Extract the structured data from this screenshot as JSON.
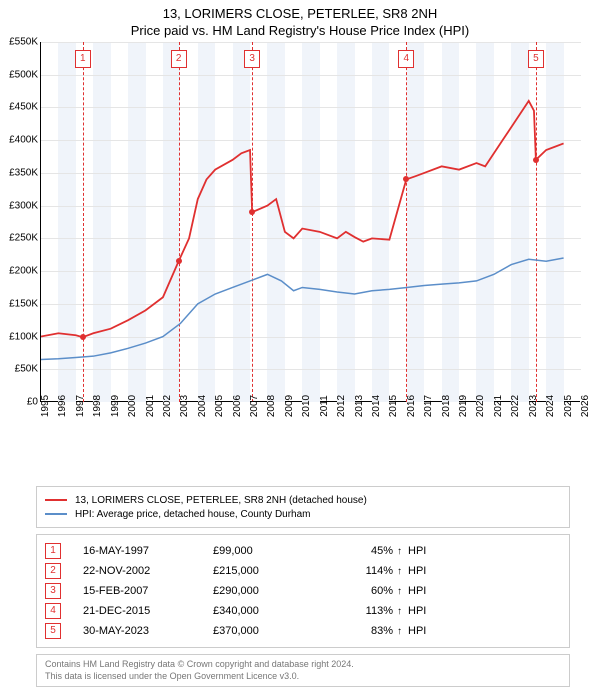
{
  "title_line1": "13, LORIMERS CLOSE, PETERLEE, SR8 2NH",
  "title_line2": "Price paid vs. HM Land Registry's House Price Index (HPI)",
  "chart": {
    "type": "line",
    "background_color": "#ffffff",
    "shade_color": "#f0f4fa",
    "grid_color": "#e5e5e5",
    "ylim": [
      0,
      550000
    ],
    "ytick_step": 50000,
    "yticks": [
      "£0",
      "£50K",
      "£100K",
      "£150K",
      "£200K",
      "£250K",
      "£300K",
      "£350K",
      "£400K",
      "£450K",
      "£500K",
      "£550K"
    ],
    "xlim": [
      1995,
      2026
    ],
    "xticks": [
      1995,
      1996,
      1997,
      1998,
      1999,
      2000,
      2001,
      2002,
      2003,
      2004,
      2005,
      2006,
      2007,
      2008,
      2009,
      2010,
      2011,
      2012,
      2013,
      2014,
      2015,
      2016,
      2017,
      2018,
      2019,
      2020,
      2021,
      2022,
      2023,
      2024,
      2025,
      2026
    ],
    "series": {
      "property": {
        "color": "#e03030",
        "width": 1.8,
        "label": "13, LORIMERS CLOSE, PETERLEE, SR8 2NH (detached house)",
        "points": [
          [
            1995.0,
            100000
          ],
          [
            1996.0,
            105000
          ],
          [
            1997.0,
            102000
          ],
          [
            1997.4,
            99000
          ],
          [
            1998.0,
            105000
          ],
          [
            1999.0,
            112000
          ],
          [
            2000.0,
            125000
          ],
          [
            2001.0,
            140000
          ],
          [
            2002.0,
            160000
          ],
          [
            2002.9,
            215000
          ],
          [
            2003.5,
            250000
          ],
          [
            2004.0,
            310000
          ],
          [
            2004.5,
            340000
          ],
          [
            2005.0,
            355000
          ],
          [
            2006.0,
            370000
          ],
          [
            2006.5,
            380000
          ],
          [
            2007.0,
            385000
          ],
          [
            2007.12,
            290000
          ],
          [
            2008.0,
            300000
          ],
          [
            2008.5,
            310000
          ],
          [
            2009.0,
            260000
          ],
          [
            2009.5,
            250000
          ],
          [
            2010.0,
            265000
          ],
          [
            2011.0,
            260000
          ],
          [
            2012.0,
            250000
          ],
          [
            2012.5,
            260000
          ],
          [
            2013.0,
            252000
          ],
          [
            2013.5,
            245000
          ],
          [
            2014.0,
            250000
          ],
          [
            2015.0,
            248000
          ],
          [
            2015.97,
            340000
          ],
          [
            2016.5,
            345000
          ],
          [
            2017.0,
            350000
          ],
          [
            2018.0,
            360000
          ],
          [
            2019.0,
            355000
          ],
          [
            2020.0,
            365000
          ],
          [
            2020.5,
            360000
          ],
          [
            2021.0,
            380000
          ],
          [
            2021.5,
            400000
          ],
          [
            2022.0,
            420000
          ],
          [
            2022.5,
            440000
          ],
          [
            2023.0,
            460000
          ],
          [
            2023.3,
            445000
          ],
          [
            2023.41,
            370000
          ],
          [
            2024.0,
            385000
          ],
          [
            2024.5,
            390000
          ],
          [
            2025.0,
            395000
          ]
        ]
      },
      "hpi": {
        "color": "#5b8ec9",
        "width": 1.5,
        "label": "HPI: Average price, detached house, County Durham",
        "points": [
          [
            1995.0,
            65000
          ],
          [
            1996.0,
            66000
          ],
          [
            1997.0,
            68000
          ],
          [
            1998.0,
            70000
          ],
          [
            1999.0,
            75000
          ],
          [
            2000.0,
            82000
          ],
          [
            2001.0,
            90000
          ],
          [
            2002.0,
            100000
          ],
          [
            2003.0,
            120000
          ],
          [
            2004.0,
            150000
          ],
          [
            2005.0,
            165000
          ],
          [
            2006.0,
            175000
          ],
          [
            2007.0,
            185000
          ],
          [
            2008.0,
            195000
          ],
          [
            2008.8,
            185000
          ],
          [
            2009.5,
            170000
          ],
          [
            2010.0,
            175000
          ],
          [
            2011.0,
            172000
          ],
          [
            2012.0,
            168000
          ],
          [
            2013.0,
            165000
          ],
          [
            2014.0,
            170000
          ],
          [
            2015.0,
            172000
          ],
          [
            2016.0,
            175000
          ],
          [
            2017.0,
            178000
          ],
          [
            2018.0,
            180000
          ],
          [
            2019.0,
            182000
          ],
          [
            2020.0,
            185000
          ],
          [
            2021.0,
            195000
          ],
          [
            2022.0,
            210000
          ],
          [
            2023.0,
            218000
          ],
          [
            2024.0,
            215000
          ],
          [
            2025.0,
            220000
          ]
        ]
      }
    },
    "sale_markers": [
      {
        "year": 1997.4,
        "price": 99000
      },
      {
        "year": 2002.9,
        "price": 215000
      },
      {
        "year": 2007.12,
        "price": 290000
      },
      {
        "year": 2015.97,
        "price": 340000
      },
      {
        "year": 2023.41,
        "price": 370000
      }
    ],
    "flag_color": "#e03030",
    "marker_color": "#e03030"
  },
  "legend": {
    "border": "#cccccc",
    "items": [
      {
        "color": "#e03030",
        "label": "13, LORIMERS CLOSE, PETERLEE, SR8 2NH (detached house)"
      },
      {
        "color": "#5b8ec9",
        "label": "HPI: Average price, detached house, County Durham"
      }
    ]
  },
  "sales": [
    {
      "idx": "1",
      "date": "16-MAY-1997",
      "price": "£99,000",
      "pct": "45%",
      "arrow": "↑",
      "suffix": "HPI"
    },
    {
      "idx": "2",
      "date": "22-NOV-2002",
      "price": "£215,000",
      "pct": "114%",
      "arrow": "↑",
      "suffix": "HPI"
    },
    {
      "idx": "3",
      "date": "15-FEB-2007",
      "price": "£290,000",
      "pct": "60%",
      "arrow": "↑",
      "suffix": "HPI"
    },
    {
      "idx": "4",
      "date": "21-DEC-2015",
      "price": "£340,000",
      "pct": "113%",
      "arrow": "↑",
      "suffix": "HPI"
    },
    {
      "idx": "5",
      "date": "30-MAY-2023",
      "price": "£370,000",
      "pct": "83%",
      "arrow": "↑",
      "suffix": "HPI"
    }
  ],
  "footer": {
    "line1": "Contains HM Land Registry data © Crown copyright and database right 2024.",
    "line2": "This data is licensed under the Open Government Licence v3.0."
  }
}
